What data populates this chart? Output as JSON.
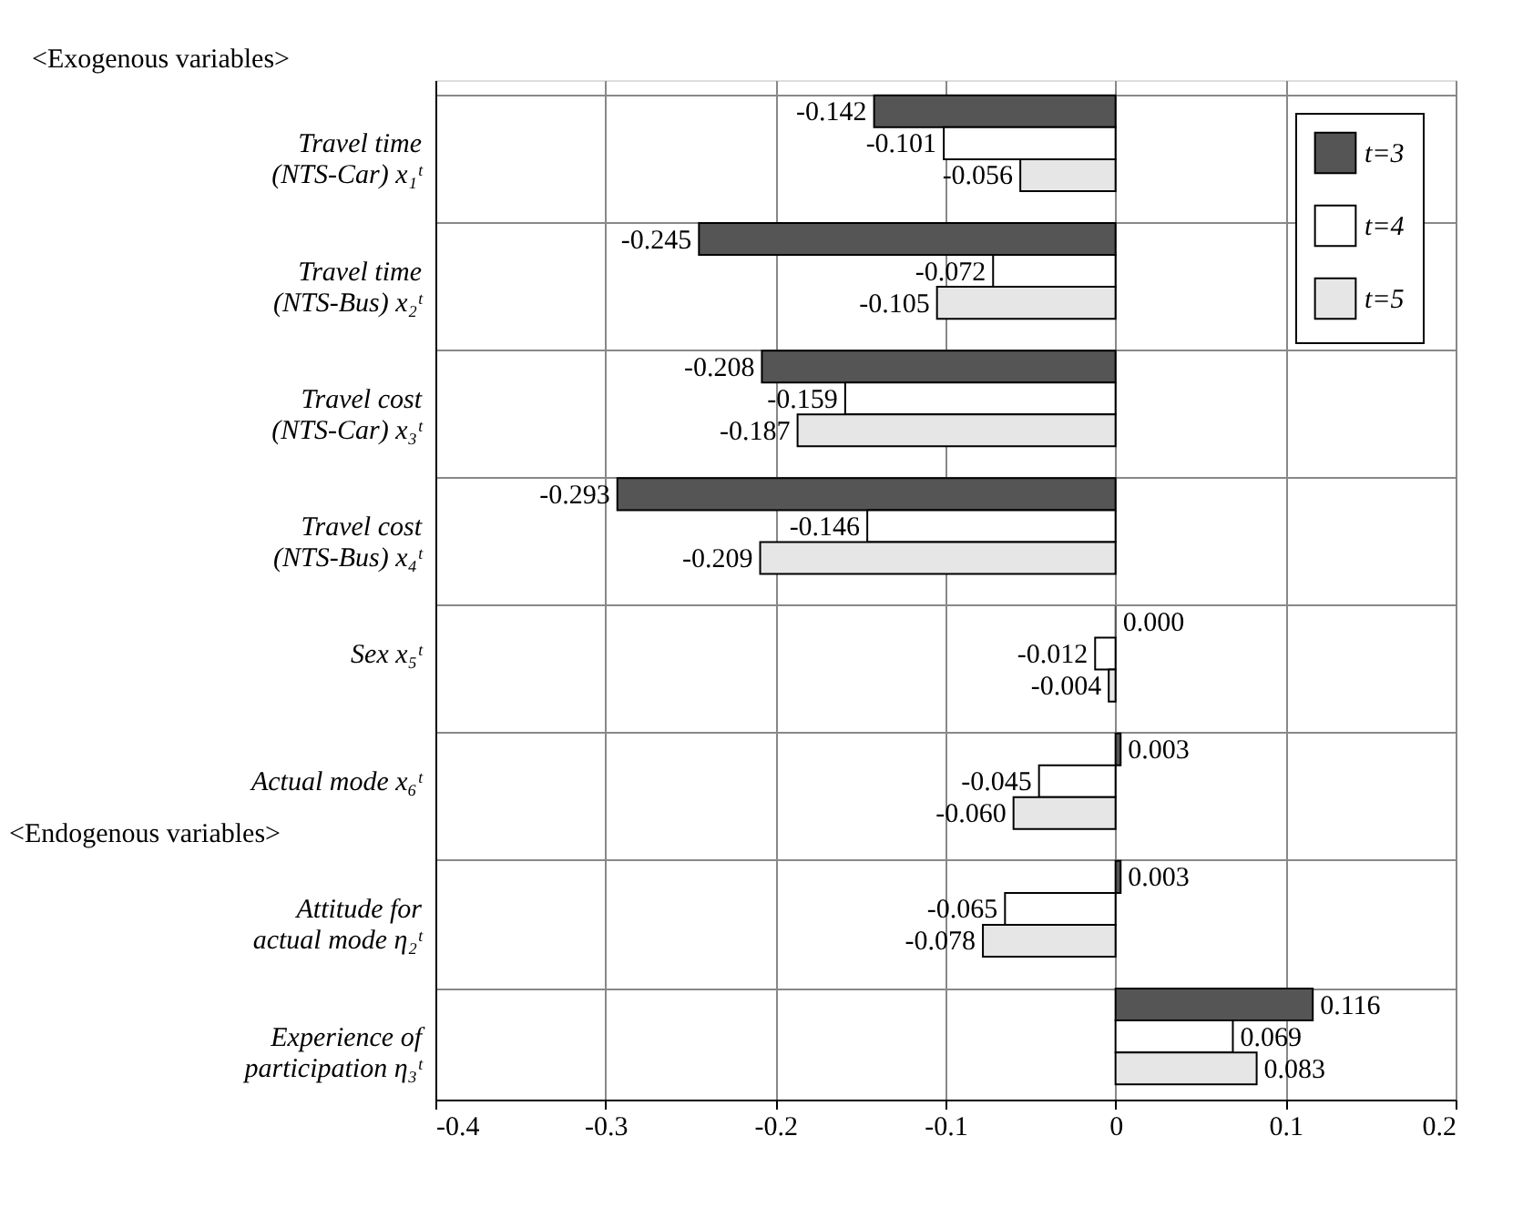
{
  "chart_data": {
    "type": "bar",
    "orientation": "horizontal",
    "categories": [
      "Travel time\n(NTS-Car)  x₁ᵗ",
      "Travel time\n(NTS-Bus)  x₂ᵗ",
      "Travel cost\n(NTS-Car)  x₃ᵗ",
      "Travel cost\n(NTS-Bus)  x₄ᵗ",
      "Sex  x₅ᵗ",
      "Actual mode  x₆ᵗ",
      "Attitude for\nactual mode  η₂ᵗ",
      "Experience of\nparticipation  η₃ᵗ"
    ],
    "series": [
      {
        "name": "t=3",
        "color": "#555555",
        "values": [
          -0.142,
          -0.245,
          -0.208,
          -0.293,
          0.0,
          0.003,
          0.003,
          0.116
        ],
        "value_labels": [
          "-0.142",
          "-0.245",
          "-0.208",
          "-0.293",
          "0.000",
          "0.003",
          "0.003",
          "0.116"
        ]
      },
      {
        "name": "t=4",
        "color": "#ffffff",
        "values": [
          -0.101,
          -0.072,
          -0.159,
          -0.146,
          -0.012,
          -0.045,
          -0.065,
          0.069
        ],
        "value_labels": [
          "-0.101",
          "-0.072",
          "-0.159",
          "-0.146",
          "-0.012",
          "-0.045",
          "-0.065",
          "0.069"
        ]
      },
      {
        "name": "t=5",
        "color": "#e6e6e6",
        "values": [
          -0.056,
          -0.105,
          -0.187,
          -0.209,
          -0.004,
          -0.06,
          -0.078,
          0.083
        ],
        "value_labels": [
          "-0.056",
          "-0.105",
          "-0.187",
          "-0.209",
          "-0.004",
          "-0.060",
          "-0.078",
          "0.083"
        ]
      }
    ],
    "xlim": [
      -0.4,
      0.2
    ],
    "xticks": [
      -0.4,
      -0.3,
      -0.2,
      -0.1,
      0,
      0.1,
      0.2
    ],
    "grid": true,
    "legend": "top right",
    "annotations": [
      "<Exogenous variables>",
      "<Endogenous variables>"
    ]
  }
}
